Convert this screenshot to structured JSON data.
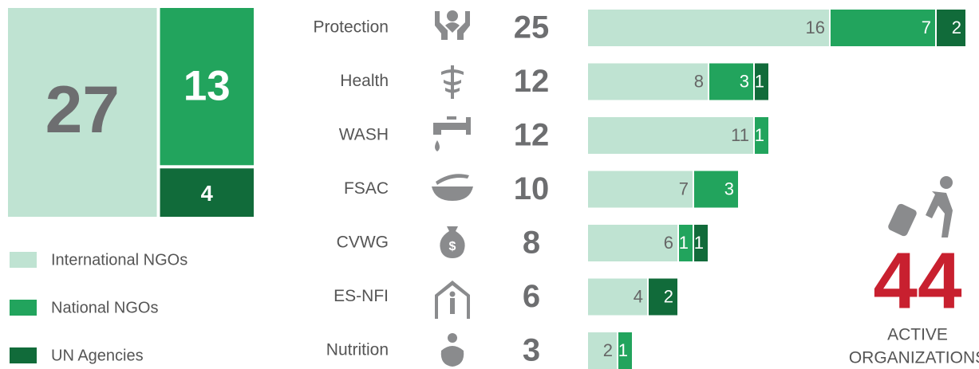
{
  "chart_data": {
    "type": "bar",
    "orientation": "horizontal",
    "stacked": true,
    "categories": [
      "Protection",
      "Health",
      "WASH",
      "FSAC",
      "CVWG",
      "ES-NFI",
      "Nutrition"
    ],
    "totals": [
      25,
      12,
      12,
      10,
      8,
      6,
      3
    ],
    "series": [
      {
        "name": "International NGOs",
        "color": "#bfe3d2",
        "values": [
          16,
          8,
          11,
          7,
          6,
          4,
          2
        ]
      },
      {
        "name": "National NGOs",
        "color": "#22a45d",
        "values": [
          7,
          3,
          1,
          3,
          1,
          null,
          1
        ]
      },
      {
        "name": "UN Agencies",
        "color": "#116b3a",
        "values": [
          2,
          1,
          null,
          null,
          1,
          2,
          null
        ]
      }
    ],
    "treemap": {
      "values": [
        27,
        13,
        4
      ]
    },
    "total": {
      "value": 44,
      "label_lines": [
        "ACTIVE",
        "ORGANIZATIONS"
      ]
    }
  }
}
